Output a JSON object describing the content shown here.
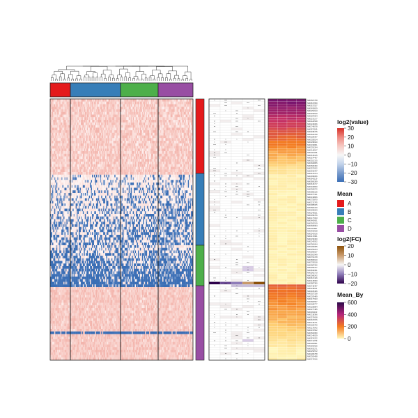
{
  "chart_data": {
    "type": "heatmap",
    "title": "",
    "main_heatmap": {
      "legend_title": "log2(value)",
      "color_scale": [
        {
          "value": 30,
          "color": "#d73027"
        },
        {
          "value": 20,
          "color": "#ee8a82"
        },
        {
          "value": 10,
          "color": "#f6c9c3"
        },
        {
          "value": 0,
          "color": "#f7f7f7"
        },
        {
          "value": -10,
          "color": "#c3d3ea"
        },
        {
          "value": -20,
          "color": "#7b9ccd"
        },
        {
          "value": -30,
          "color": "#3a6eb5"
        }
      ],
      "legend_ticks": [
        "30",
        "20",
        "10",
        "0",
        "−10",
        "−20",
        "−30"
      ],
      "column_groups": [
        "A",
        "B",
        "C",
        "D"
      ],
      "row_groups": [
        "A",
        "B",
        "C",
        "D"
      ]
    },
    "mean_annotation": {
      "legend_title": "Mean",
      "categories": [
        {
          "label": "A",
          "color": "#e41a1c"
        },
        {
          "label": "B",
          "color": "#377eb8"
        },
        {
          "label": "C",
          "color": "#4daf4a"
        },
        {
          "label": "D",
          "color": "#984ea3"
        }
      ]
    },
    "fold_change": {
      "legend_title": "log2(FC)",
      "color_scale": [
        {
          "value": 20,
          "color": "#8c510a"
        },
        {
          "value": 10,
          "color": "#c99a6b"
        },
        {
          "value": 0,
          "color": "#f7f7f7"
        },
        {
          "value": -10,
          "color": "#8e7cb8"
        },
        {
          "value": -20,
          "color": "#2d004b"
        }
      ],
      "legend_ticks": [
        "20",
        "10",
        "0",
        "−10",
        "−20"
      ],
      "significance_marks": [
        "*",
        "**",
        "***"
      ]
    },
    "mean_by": {
      "legend_title": "Mean_By",
      "color_scale": [
        {
          "value": 600,
          "color": "#2c0a4a"
        },
        {
          "value": 400,
          "color": "#b5247a"
        },
        {
          "value": 200,
          "color": "#f47c20"
        },
        {
          "value": 0,
          "color": "#fff7bc"
        }
      ],
      "legend_ticks": [
        "600",
        "400",
        "200",
        "0"
      ]
    },
    "row_label_prefix": "NMC"
  }
}
